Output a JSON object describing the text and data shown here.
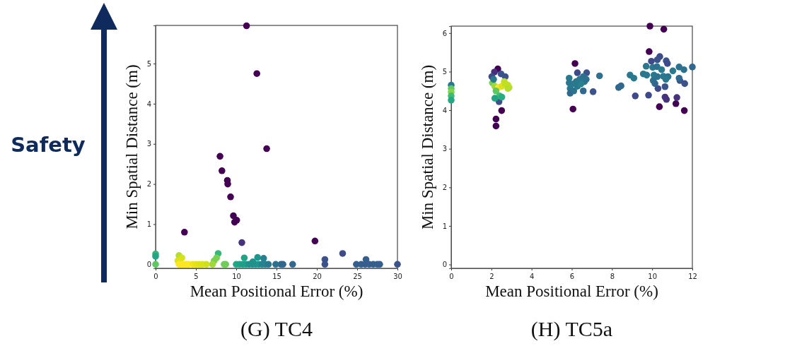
{
  "chart_data": [
    {
      "type": "scatter",
      "title": "(G) TC4",
      "xlabel": "Mean Positional Error (%)",
      "ylabel": "Min Spatial Distance (m)",
      "annotations": [
        "Safety"
      ],
      "marker": "circle",
      "grid": false,
      "xlim": [
        0,
        30
      ],
      "ylim": [
        -0.1,
        5.95
      ],
      "xticks": [
        0,
        5,
        10,
        15,
        20,
        25,
        30
      ],
      "yticks": [
        0,
        1,
        2,
        3,
        4,
        5
      ],
      "series": [
        {
          "x": [
            11.28,
            12.56,
            13.78,
            7.99,
            8.23,
            8.9,
            8.95,
            9.3,
            9.65,
            9.8,
            10.06,
            3.58,
            19.77,
            10.7,
            23.2,
            21.0,
            21.0,
            24.9,
            25.5,
            26.0,
            26.5,
            27.0,
            27.5,
            27.8,
            26.1,
            30.0,
            17.0,
            15.8,
            15.55,
            14.9,
            10.0,
            10.4,
            10.8,
            11.2,
            11.6,
            12.0,
            12.4,
            12.8,
            13.2,
            13.6,
            14.0,
            11.0,
            12.65,
            13.4,
            12.06,
            8.5,
            8.7,
            7.76,
            7.56,
            7.27,
            7.06,
            2.9,
            3.26,
            2.76,
            2.9,
            3.2,
            3.5,
            3.8,
            4.1,
            4.6,
            5.0,
            5.4,
            5.8,
            6.3,
            0,
            0,
            0
          ],
          "values": [
            5.94,
            4.75,
            2.88,
            2.69,
            2.33,
            2.09,
            2.0,
            1.68,
            1.21,
            1.05,
            1.1,
            0.8,
            0.58,
            0.54,
            0.27,
            0.12,
            0,
            0,
            0,
            0,
            0,
            0,
            0,
            0,
            0.12,
            0,
            0,
            0,
            0,
            0,
            0,
            0,
            0,
            0,
            0,
            0,
            0,
            0,
            0,
            0,
            0,
            0.16,
            0.17,
            0.15,
            0.06,
            0,
            0,
            0.27,
            0.16,
            0.09,
            0,
            0.22,
            0.16,
            0.09,
            0,
            0,
            0,
            0,
            0,
            0,
            0,
            0,
            0,
            0,
            0.26,
            0.2,
            0
          ],
          "colors": [
            "#440154",
            "#440154",
            "#440154",
            "#440154",
            "#440154",
            "#440154",
            "#440154",
            "#440154",
            "#440154",
            "#440154",
            "#440154",
            "#440154",
            "#440154",
            "#46337e",
            "#3e4a89",
            "#3b528b",
            "#3b528b",
            "#355f8d",
            "#355f8d",
            "#355f8d",
            "#355f8d",
            "#355f8d",
            "#355f8d",
            "#355f8d",
            "#355f8d",
            "#3b528b",
            "#31688e",
            "#31688e",
            "#31688e",
            "#2c728e",
            "#22a884",
            "#20a386",
            "#1f9e89",
            "#1f9e89",
            "#21918c",
            "#21918c",
            "#21918c",
            "#1f968b",
            "#26828e",
            "#26828e",
            "#2a788e",
            "#20a386",
            "#1f968b",
            "#26828e",
            "#21918c",
            "#6ece58",
            "#6ece58",
            "#35b779",
            "#7ad151",
            "#7ad151",
            "#a0da39",
            "#b5de2b",
            "#d8e219",
            "#dde318",
            "#fde725",
            "#fde725",
            "#fde725",
            "#fde725",
            "#fde725",
            "#f0e51c",
            "#e5e419",
            "#dde318",
            "#d8e219",
            "#d0e11c",
            "#35b779",
            "#21a585",
            "#5ec962"
          ]
        }
      ]
    },
    {
      "type": "scatter",
      "title": "(H) TC5a",
      "xlabel": "Mean Positional Error (%)",
      "ylabel": "Min Spatial Distance (m)",
      "marker": "circle",
      "grid": false,
      "xlim": [
        0,
        12
      ],
      "ylim": [
        -0.1,
        6.18
      ],
      "xticks": [
        0,
        2,
        4,
        6,
        8,
        10,
        12
      ],
      "yticks": [
        0,
        1,
        2,
        3,
        4,
        5,
        6
      ],
      "series": [
        {
          "x": [
            9.89,
            10.58,
            9.85,
            6.16,
            2.32,
            2.51,
            2.23,
            2.23,
            6.06,
            10.36,
            11.6,
            11.18,
            11.23,
            10.71,
            2.15,
            2.48,
            2.02,
            2.69,
            2.38,
            9.96,
            10.38,
            10.26,
            10.7,
            10.76,
            9.16,
            9.82,
            7.06,
            6.74,
            6.28,
            10.64,
            10.29,
            10.64,
            11.62,
            11.38,
            12.0,
            9.7,
            10.03,
            10.24,
            10.47,
            11.03,
            11.34,
            11.58,
            9.56,
            9.73,
            10.09,
            10.26,
            10.56,
            10.79,
            10.05,
            10.14,
            10.68,
            11.34,
            8.9,
            9.09,
            8.33,
            8.45,
            7.38,
            5.87,
            5.87,
            5.92,
            5.92,
            6.1,
            6.28,
            6.39,
            6.57,
            6.63,
            6.45,
            6.22,
            6.04,
            6.57,
            6.72,
            2.05,
            2.17,
            2.35,
            2.52,
            2.7,
            2.88,
            2.82,
            2.23,
            2.41,
            2.17,
            2.52,
            2.11,
            2.64,
            2.82,
            0,
            0,
            0,
            0,
            0
          ],
          "values": [
            6.18,
            6.1,
            5.52,
            5.21,
            5.07,
            3.99,
            3.77,
            3.59,
            4.03,
            4.09,
            3.99,
            4.17,
            4.33,
            4.28,
            4.99,
            4.94,
            4.87,
            4.87,
            4.22,
            5.27,
            5.39,
            5.31,
            5.28,
            5.21,
            4.37,
            4.39,
            4.48,
            4.97,
            4.97,
            4.34,
            4.56,
            4.61,
            4.69,
            4.77,
            5.12,
            5.14,
            5.11,
            5.13,
            5.05,
            5.02,
            5.12,
            5.05,
            4.94,
            4.91,
            4.91,
            4.87,
            4.88,
            4.87,
            4.77,
            4.69,
            4.8,
            4.83,
            4.91,
            4.83,
            4.59,
            4.63,
            4.89,
            4.83,
            4.71,
            4.56,
            4.44,
            4.5,
            4.62,
            4.8,
            4.87,
            4.74,
            4.68,
            4.74,
            4.68,
            4.5,
            4.8,
            4.71,
            4.62,
            4.59,
            4.62,
            4.68,
            4.59,
            4.65,
            4.5,
            4.37,
            4.31,
            4.34,
            4.8,
            4.74,
            4.56,
            4.65,
            4.56,
            4.47,
            4.37,
            4.26
          ],
          "colors": [
            "#440154",
            "#440154",
            "#440154",
            "#440154",
            "#440154",
            "#440154",
            "#440154",
            "#440154",
            "#440154",
            "#440154",
            "#440154",
            "#440154",
            "#46337e",
            "#46337e",
            "#472d7b",
            "#3b528b",
            "#3e4a89",
            "#3b528b",
            "#3b528b",
            "#3e4a89",
            "#3e4a89",
            "#3b528b",
            "#3b528b",
            "#3e4a89",
            "#3e4a89",
            "#3e4a89",
            "#3b528b",
            "#3b528b",
            "#3e4a89",
            "#46337e",
            "#3e4a89",
            "#3b528b",
            "#3b528b",
            "#3b528b",
            "#31688e",
            "#2a788e",
            "#2a788e",
            "#2c728e",
            "#2a788e",
            "#2a788e",
            "#2c728e",
            "#2c728e",
            "#2a788e",
            "#2a788e",
            "#2a788e",
            "#2c728e",
            "#2a788e",
            "#2c728e",
            "#2c728e",
            "#31688e",
            "#2a788e",
            "#31688e",
            "#2a788e",
            "#2a788e",
            "#31688e",
            "#31688e",
            "#2c728e",
            "#2a788e",
            "#2a788e",
            "#2a788e",
            "#31688e",
            "#2c728e",
            "#2a788e",
            "#2a788e",
            "#2c728e",
            "#2a788e",
            "#26828e",
            "#2a788e",
            "#2a788e",
            "#31688e",
            "#2c728e",
            "#7ad151",
            "#a0da39",
            "#fde725",
            "#dde318",
            "#bddf26",
            "#b5de2b",
            "#c2df23",
            "#5ec962",
            "#3fbc73",
            "#21a585",
            "#27ad81",
            "#2a788e",
            "#c2df23",
            "#b5de2b",
            "#2a788e",
            "#5ec962",
            "#84d44b",
            "#3fbc73",
            "#22a884"
          ]
        }
      ]
    }
  ]
}
